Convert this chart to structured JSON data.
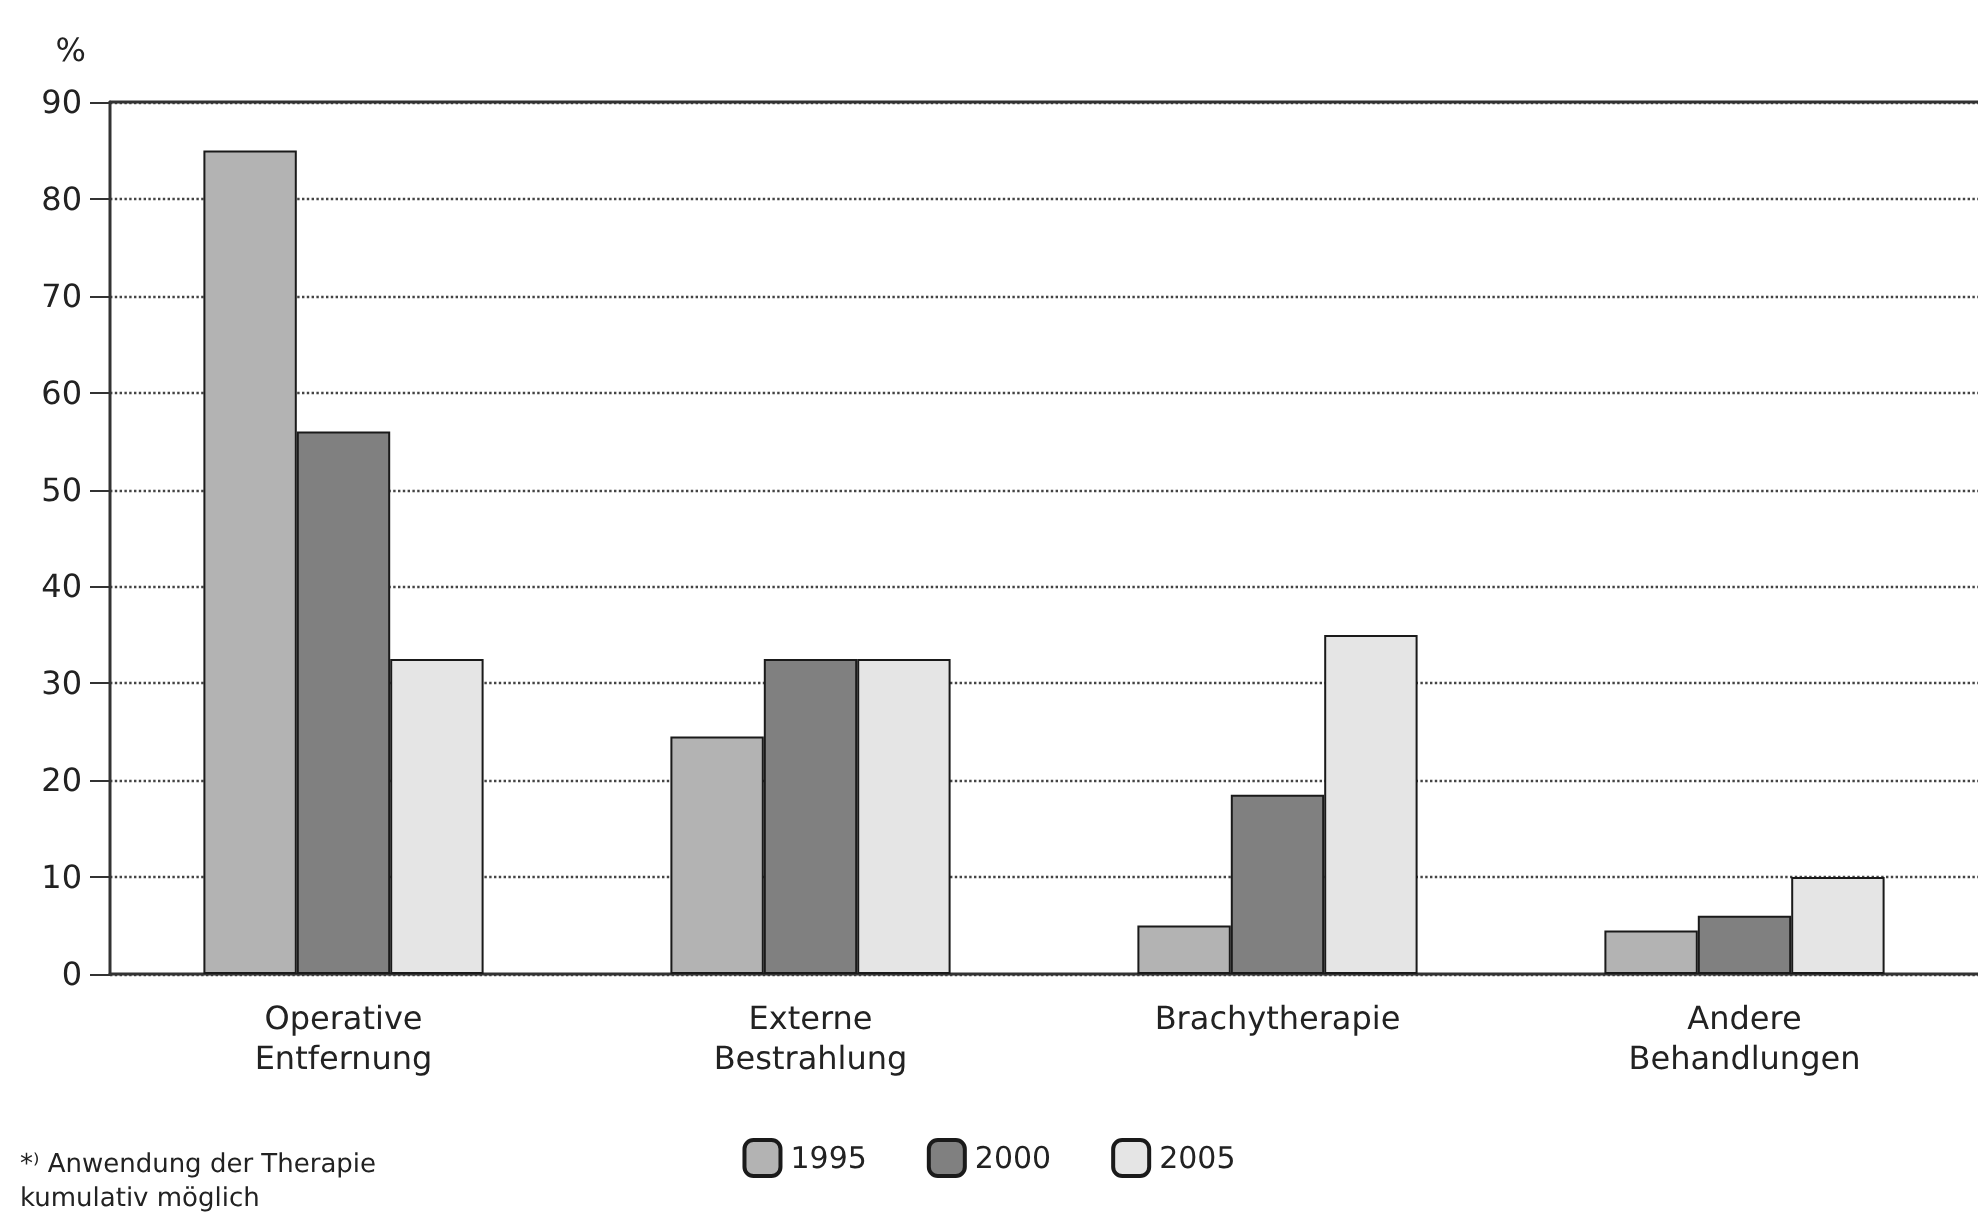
{
  "chart_data": {
    "type": "bar",
    "ylabel": "%",
    "categories": [
      "Operative\nEntfernung",
      "Externe\nBestrahlung",
      "Brachytherapie",
      "Andere\nBehandlungen"
    ],
    "series": [
      {
        "name": "1995",
        "color": "#b3b3b3",
        "values": [
          85,
          24.5,
          5,
          4.5
        ]
      },
      {
        "name": "2000",
        "color": "#808080",
        "values": [
          56,
          32.5,
          18.5,
          6
        ]
      },
      {
        "name": "2005",
        "color": "#e5e5e5",
        "values": [
          32.5,
          32.5,
          35,
          10
        ]
      }
    ],
    "ylim": [
      0,
      90
    ],
    "yticks": [
      0,
      10,
      20,
      30,
      40,
      50,
      60,
      70,
      80,
      90
    ],
    "grid": "y",
    "legend": "bottom",
    "annotations": [
      "*⁾ Anwendung der Therapie\nkumulativ möglich"
    ]
  }
}
